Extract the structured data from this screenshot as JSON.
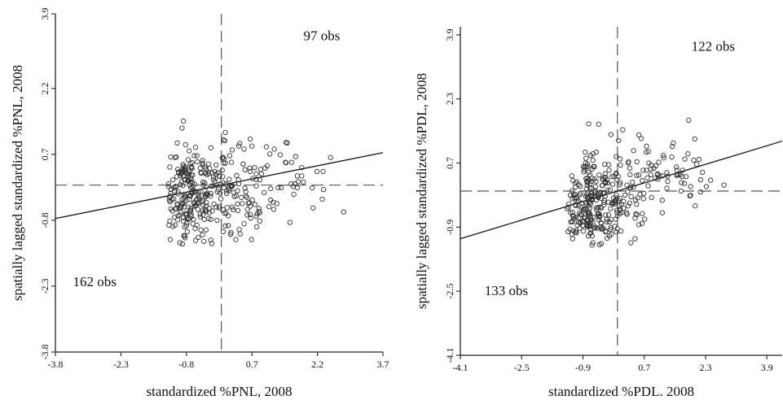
{
  "chart_data": [
    {
      "type": "scatter",
      "xlabel": "standardized %PNL, 2008",
      "ylabel": "spatially lagged standardized %PNL, 2008",
      "xlim": [
        -3.8,
        3.7
      ],
      "ylim": [
        -3.8,
        3.9
      ],
      "xticks": [
        "-3.8",
        "-2.3",
        "-0.8",
        "0.7",
        "2.2",
        "3.7"
      ],
      "yticks": [
        "-3.8",
        "-2.3",
        "-0.8",
        "0.7",
        "2.2",
        "3.9"
      ],
      "quadrant_x": 0.0,
      "quadrant_y": 0.0,
      "regression": {
        "slope": 0.2,
        "intercept": 0.0
      },
      "annotations": [
        {
          "text": "97 obs",
          "x": 2.3,
          "y": 3.3
        },
        {
          "text": "162 obs",
          "x": -2.9,
          "y": -2.3
        }
      ],
      "x": [],
      "y": []
    },
    {
      "type": "scatter",
      "xlabel": "standardized %PDL. 2008",
      "ylabel": "spatially lagged standardized %PDL, 2008",
      "xlim": [
        -4.1,
        4.3
      ],
      "ylim": [
        -4.1,
        4.1
      ],
      "xticks": [
        "-4.1",
        "-2.5",
        "-0.9",
        "0.7",
        "2.3",
        "3.9"
      ],
      "yticks": [
        "-4.1",
        "-2.5",
        "-0.9",
        "0.7",
        "2.3",
        "3.9"
      ],
      "quadrant_x": 0.0,
      "quadrant_y": 0.0,
      "regression": {
        "slope": 0.29,
        "intercept": 0.0
      },
      "annotations": [
        {
          "text": "122 obs",
          "x": 2.5,
          "y": 3.5
        },
        {
          "text": "133 obs",
          "x": -2.9,
          "y": -2.6
        }
      ],
      "x": [],
      "y": []
    }
  ]
}
